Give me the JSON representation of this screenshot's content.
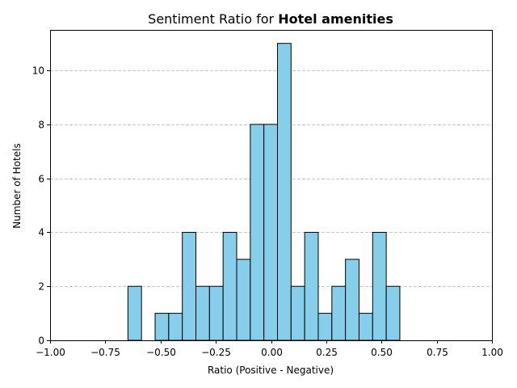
{
  "chart_data": {
    "type": "bar",
    "title_prefix": "Sentiment Ratio for ",
    "title_bold": "Hotel amenities",
    "xlabel": "Ratio (Positive - Negative)",
    "ylabel": "Number of Hotels",
    "xlim": [
      -1.0,
      1.0
    ],
    "ylim": [
      0,
      11.5
    ],
    "xticks": [
      "−1.00",
      "−0.75",
      "−0.50",
      "−0.25",
      "0.00",
      "0.25",
      "0.50",
      "0.75",
      "1.00"
    ],
    "yticks": [
      "0",
      "2",
      "4",
      "6",
      "8",
      "10"
    ],
    "grid": "y-dashed",
    "colors": {
      "bar": "#87ceeb",
      "edge": "#000000",
      "grid": "#c8c8c8"
    },
    "bin_width": 0.0615,
    "bins": [
      {
        "x0": -0.6477,
        "count": 2
      },
      {
        "x0": -0.5246,
        "count": 1
      },
      {
        "x0": -0.4631,
        "count": 1
      },
      {
        "x0": -0.4015,
        "count": 4
      },
      {
        "x0": -0.34,
        "count": 2
      },
      {
        "x0": -0.2785,
        "count": 2
      },
      {
        "x0": -0.2169,
        "count": 4
      },
      {
        "x0": -0.1554,
        "count": 3
      },
      {
        "x0": -0.0938,
        "count": 8
      },
      {
        "x0": -0.0323,
        "count": 8
      },
      {
        "x0": 0.0292,
        "count": 11
      },
      {
        "x0": 0.0908,
        "count": 2
      },
      {
        "x0": 0.1523,
        "count": 4
      },
      {
        "x0": 0.2138,
        "count": 1
      },
      {
        "x0": 0.2754,
        "count": 2
      },
      {
        "x0": 0.3369,
        "count": 3
      },
      {
        "x0": 0.3985,
        "count": 1
      },
      {
        "x0": 0.46,
        "count": 4
      },
      {
        "x0": 0.5215,
        "count": 2
      }
    ]
  }
}
